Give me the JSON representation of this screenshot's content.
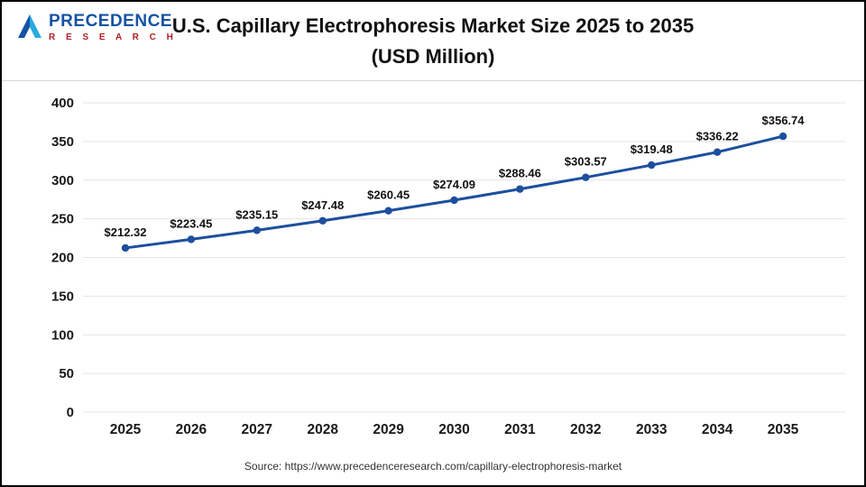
{
  "header": {
    "logo_line1": "PRECEDENCE",
    "logo_line2": "R E S E A R C H",
    "title_line1": "U.S. Capillary Electrophoresis Market Size 2025 to 2035",
    "title_line2": "(USD Million)"
  },
  "chart_data": {
    "type": "line",
    "title": "U.S. Capillary Electrophoresis Market Size 2025 to 2035 (USD Million)",
    "categories": [
      "2025",
      "2026",
      "2027",
      "2028",
      "2029",
      "2030",
      "2031",
      "2032",
      "2033",
      "2034",
      "2035"
    ],
    "values": [
      212.32,
      223.45,
      235.15,
      247.48,
      260.45,
      274.09,
      288.46,
      303.57,
      319.48,
      336.22,
      356.74
    ],
    "point_labels": [
      "$212.32",
      "$223.45",
      "$235.15",
      "$247.48",
      "$260.45",
      "$274.09",
      "$288.46",
      "$303.57",
      "$319.48",
      "$336.22",
      "$356.74"
    ],
    "xlabel": "",
    "ylabel": "",
    "ylim": [
      0,
      400
    ],
    "ytick_step": 50,
    "grid": true,
    "legend": false,
    "line_color": "#1d4f9e",
    "marker_color": "#1d4f9e",
    "grid_color": "#e3e3e3",
    "axis_text_color": "#1a1a1a",
    "label_text_color": "#111111"
  },
  "footer": {
    "source": "Source: https://www.precedenceresearch.com/capillary-electrophoresis-market"
  }
}
